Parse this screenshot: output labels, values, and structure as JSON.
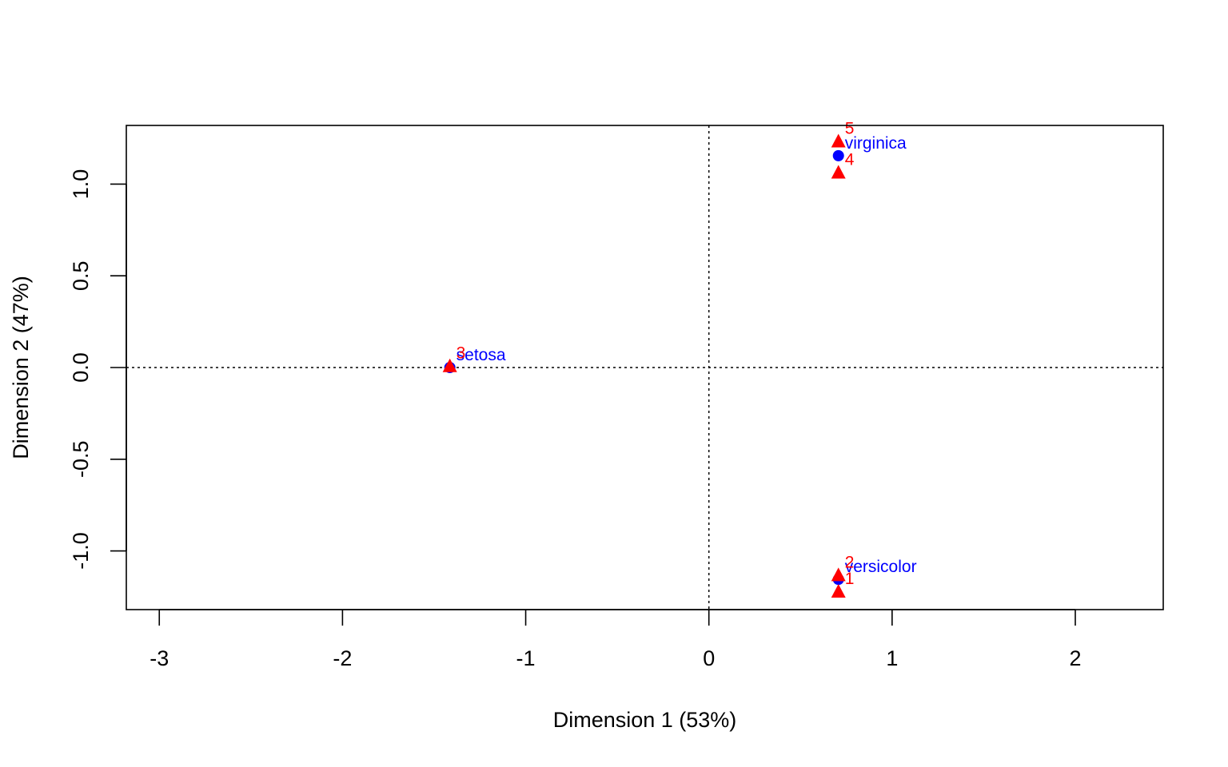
{
  "chart_data": {
    "type": "scatter",
    "title": "",
    "xlabel": "Dimension 1 (53%)",
    "ylabel": "Dimension 2 (47%)",
    "xlim": [
      -3.18,
      2.48
    ],
    "ylim": [
      -1.32,
      1.32
    ],
    "x_ticks": [
      -3,
      -2,
      -1,
      0,
      1,
      2
    ],
    "x_tick_labels": [
      "-3",
      "-2",
      "-1",
      "0",
      "1",
      "2"
    ],
    "y_ticks": [
      -1.0,
      -0.5,
      0.0,
      0.5,
      1.0
    ],
    "y_tick_labels": [
      "-1.0",
      "-0.5",
      "0.0",
      "0.5",
      "1.0"
    ],
    "grid": false,
    "reference_lines": {
      "x": 0,
      "y": 0
    },
    "colors": {
      "row_points": "#0000ff",
      "column_points": "#ff0000"
    },
    "series": [
      {
        "marker": "circle",
        "color": "#0000ff",
        "points": [
          {
            "label": "setosa",
            "x": -1.414,
            "y": 0.0
          },
          {
            "label": "versicolor",
            "x": 0.707,
            "y": -1.155
          },
          {
            "label": "virginica",
            "x": 0.707,
            "y": 1.155
          }
        ]
      },
      {
        "marker": "triangle",
        "color": "#ff0000",
        "points": [
          {
            "label": "1",
            "x": 0.707,
            "y": -1.22
          },
          {
            "label": "2",
            "x": 0.707,
            "y": -1.13
          },
          {
            "label": "3",
            "x": -1.414,
            "y": 0.01
          },
          {
            "label": "4",
            "x": 0.707,
            "y": 1.065
          },
          {
            "label": "5",
            "x": 0.707,
            "y": 1.235
          }
        ]
      }
    ]
  }
}
